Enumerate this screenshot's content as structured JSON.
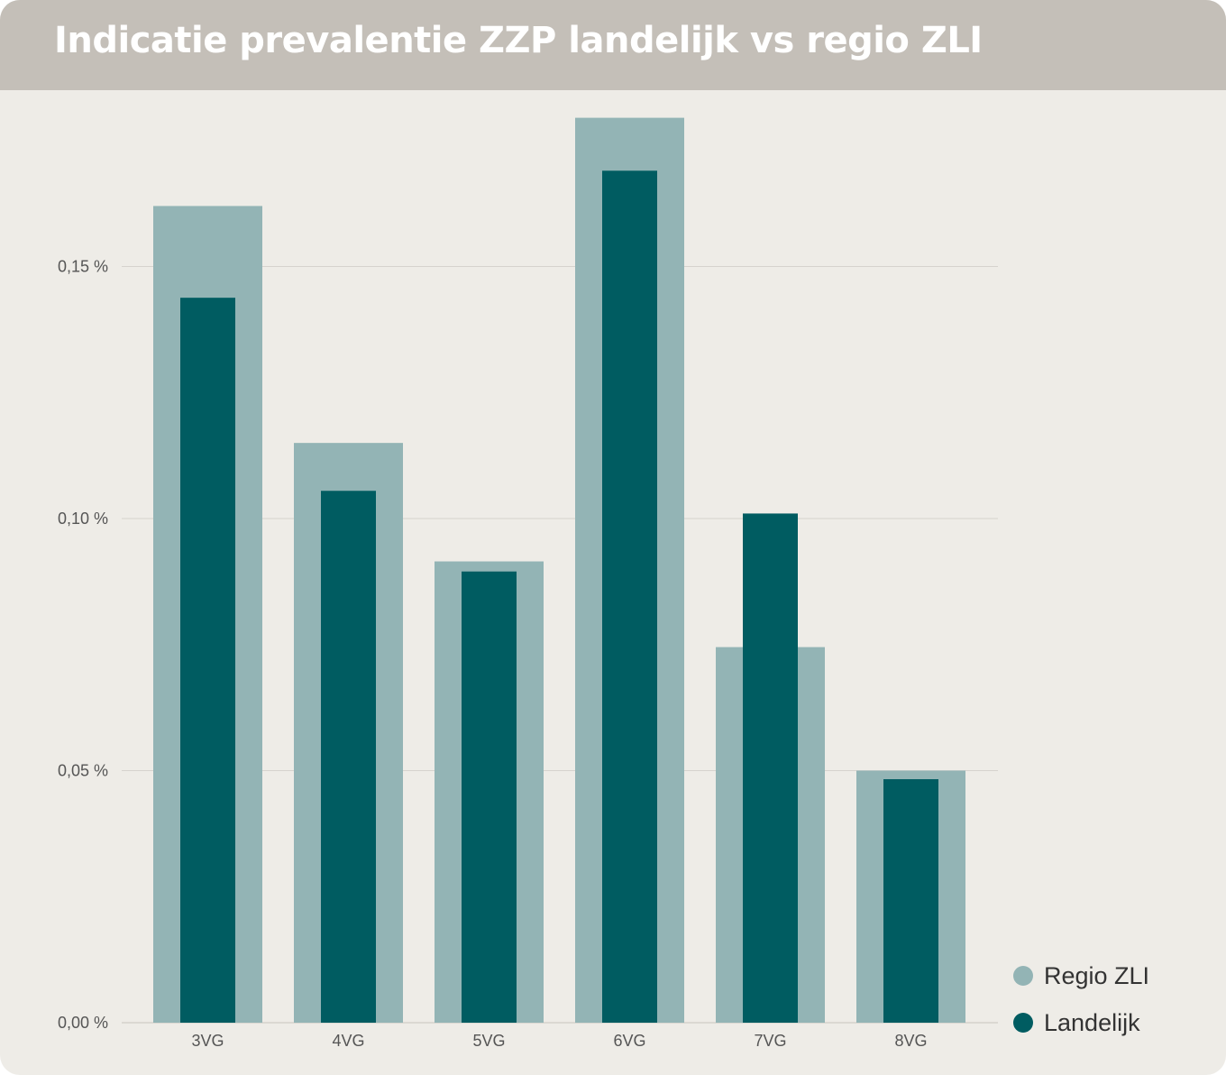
{
  "title": "Indicatie prevalentie ZZP landelijk vs regio ZLI",
  "colors": {
    "regio": "#93b4b5",
    "landelijk": "#005c61",
    "grid": "#d6d3ce"
  },
  "chart_data": {
    "type": "bar",
    "categories": [
      "3VG",
      "4VG",
      "5VG",
      "6VG",
      "7VG",
      "8VG"
    ],
    "series": [
      {
        "name": "Regio ZLI",
        "values": [
          0.162,
          0.115,
          0.0915,
          0.1795,
          0.0745,
          0.05
        ]
      },
      {
        "name": "Landelijk",
        "values": [
          0.1438,
          0.1055,
          0.0895,
          0.169,
          0.101,
          0.0483
        ]
      }
    ],
    "yticks": [
      "0,00 %",
      "0,05 %",
      "0,10 %",
      "0,15 %"
    ],
    "ytick_values": [
      0,
      0.05,
      0.1,
      0.15
    ],
    "ylim": [
      0,
      0.2
    ],
    "grid": true,
    "legend_position": "bottom-right"
  }
}
